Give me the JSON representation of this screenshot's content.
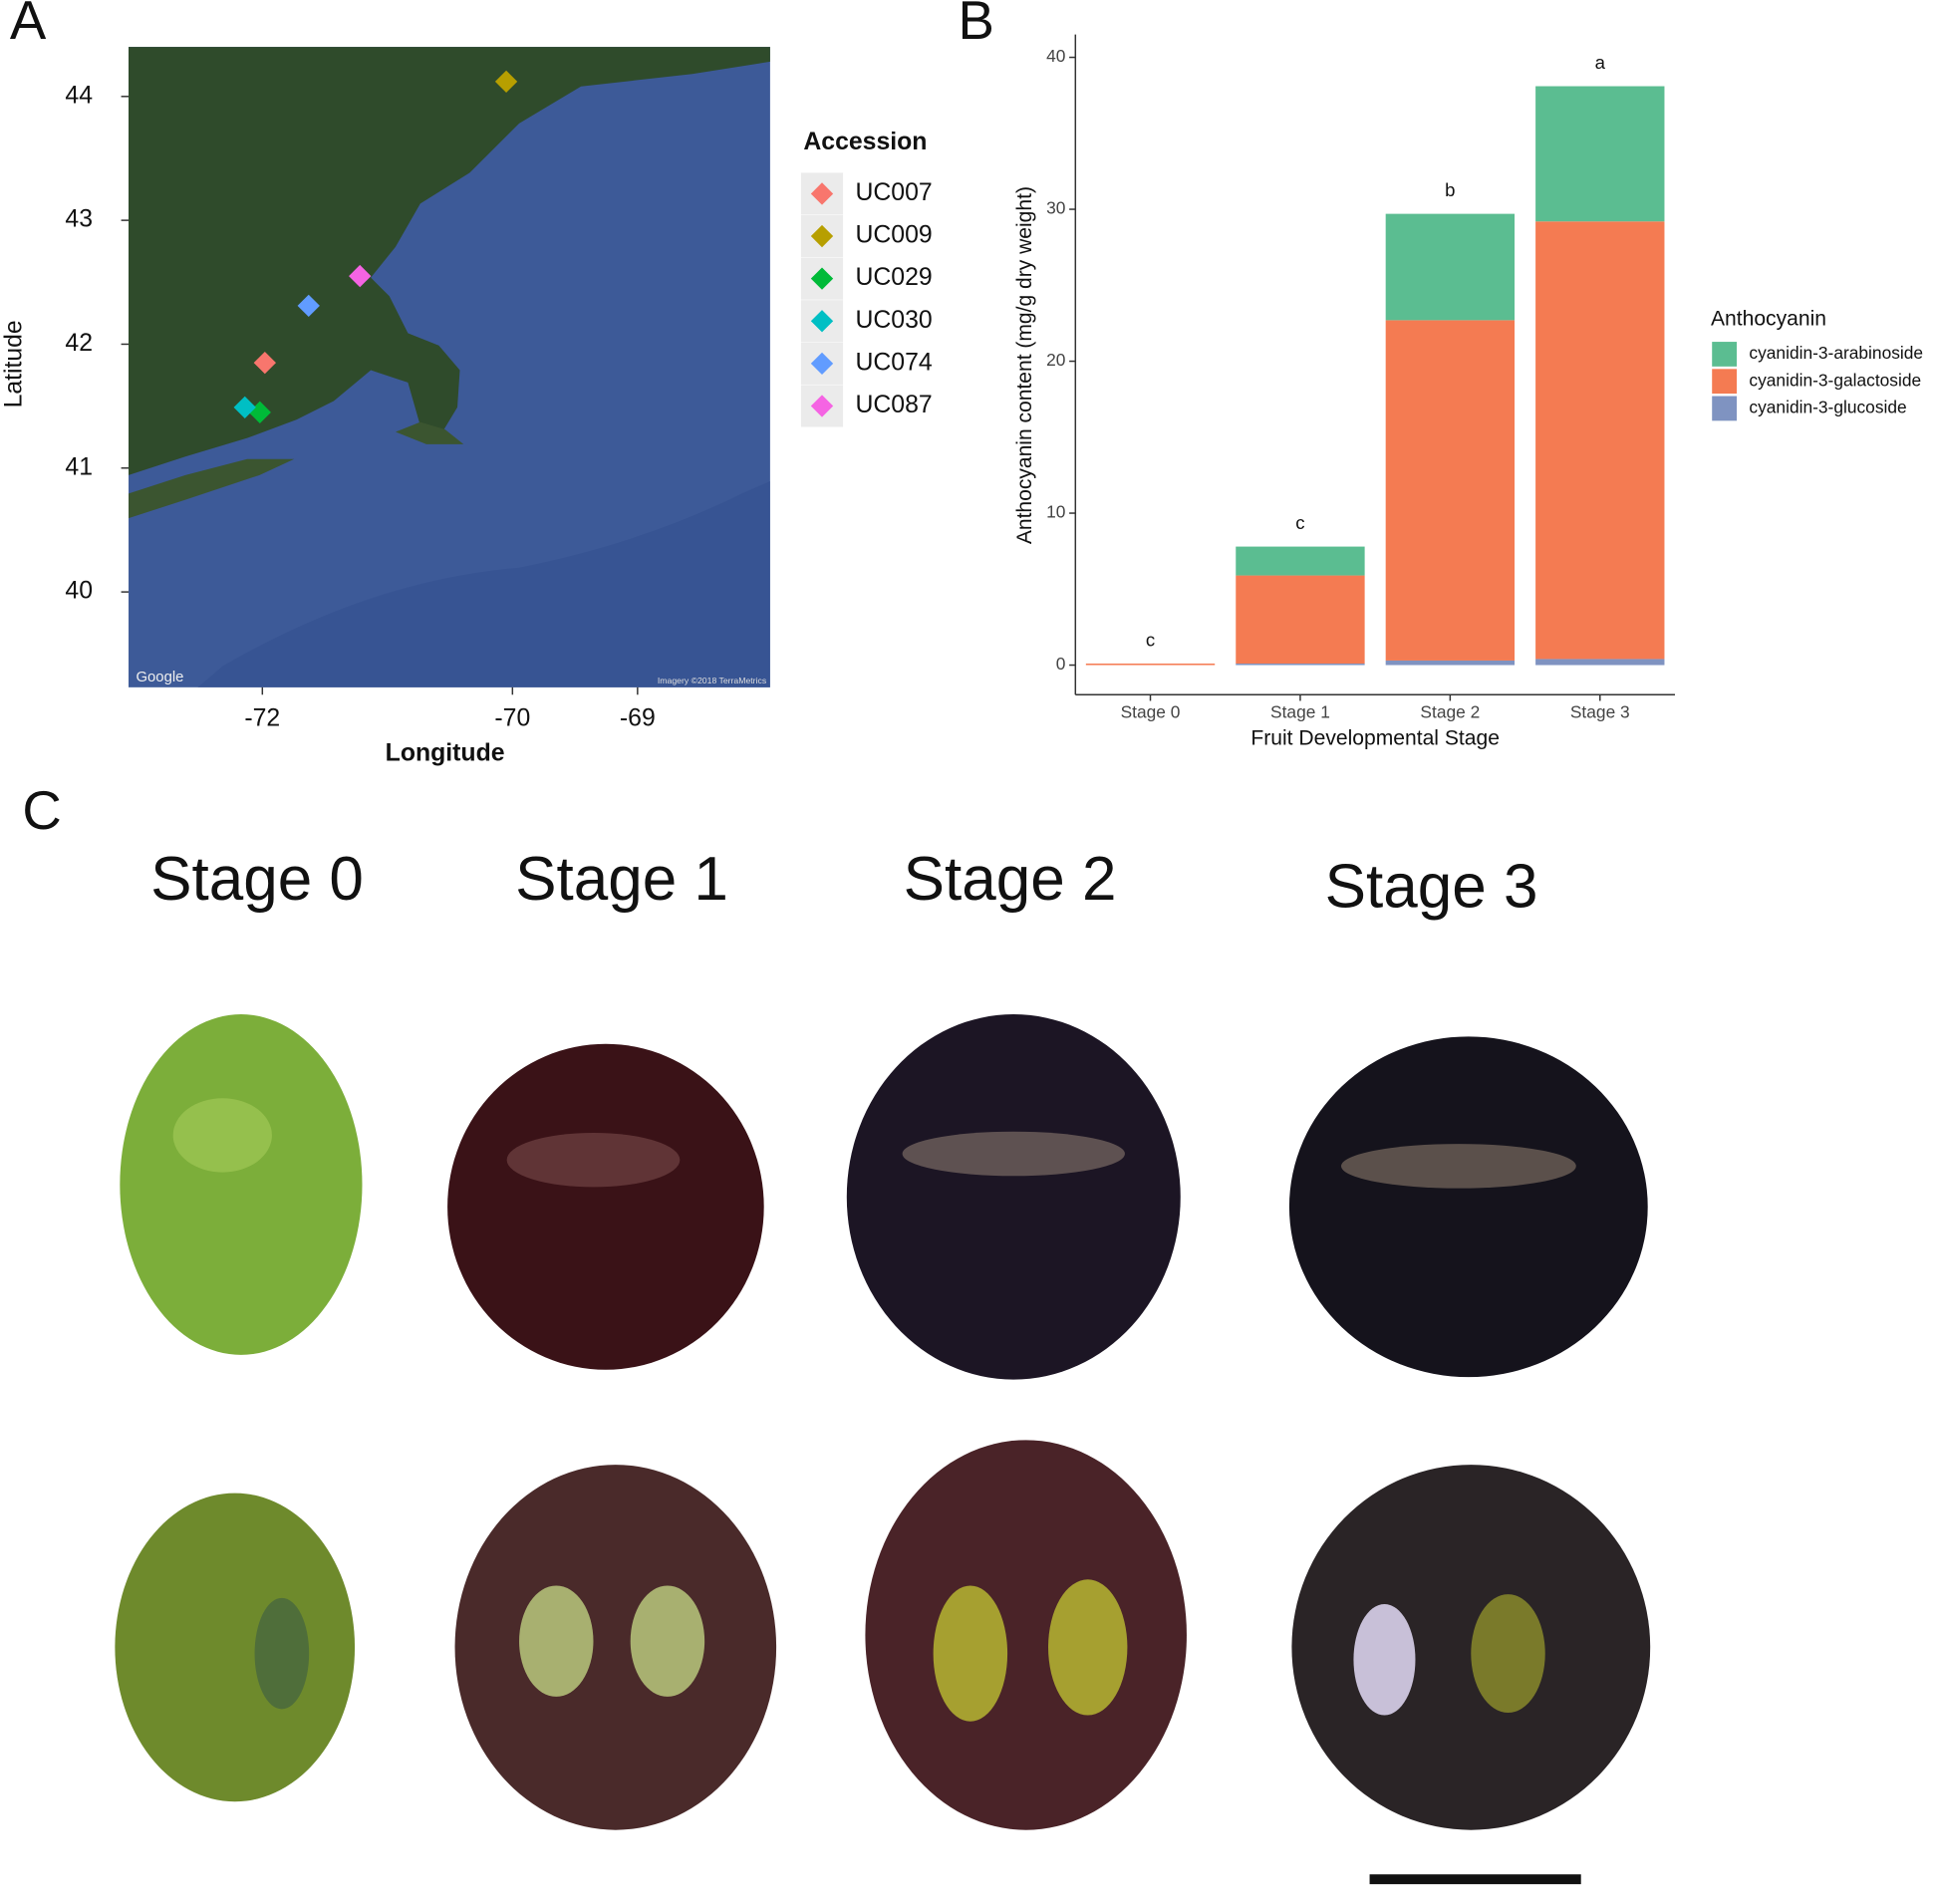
{
  "panels": [
    "A",
    "B",
    "C"
  ],
  "chart_data": [
    {
      "type": "scatter",
      "x_label": "Longitude",
      "y_label": "Latitude",
      "legend_title": "Accession",
      "attribution": [
        "Google",
        "Imagery ©2018 TerraMetrics"
      ],
      "xlim": [
        -73.07,
        -67.94
      ],
      "ylim": [
        39.23,
        44.4
      ],
      "xticks": [
        -72,
        -70,
        -69
      ],
      "yticks": [
        40,
        41,
        42,
        43,
        44
      ],
      "series": [
        {
          "name": "UC007",
          "color": "#f8766d",
          "x": [
            -71.98
          ],
          "values": [
            41.85
          ]
        },
        {
          "name": "UC009",
          "color": "#b79f00",
          "x": [
            -70.05
          ],
          "values": [
            44.12
          ]
        },
        {
          "name": "UC029",
          "color": "#00ba38",
          "x": [
            -72.02
          ],
          "values": [
            41.45
          ]
        },
        {
          "name": "UC030",
          "color": "#00bfc4",
          "x": [
            -72.14
          ],
          "values": [
            41.49
          ]
        },
        {
          "name": "UC074",
          "color": "#619cff",
          "x": [
            -71.63
          ],
          "values": [
            42.31
          ]
        },
        {
          "name": "UC087",
          "color": "#f564e3",
          "x": [
            -71.22
          ],
          "values": [
            42.55
          ]
        }
      ]
    },
    {
      "type": "bar",
      "stacked": true,
      "x_label": "Fruit Developmental Stage",
      "y_label": "Anthocyanin content (mg/g dry weight)",
      "legend_title": "Anthocyanin",
      "categories": [
        "Stage 0",
        "Stage 1",
        "Stage 2",
        "Stage 3"
      ],
      "annotations": [
        "c",
        "c",
        "b",
        "a"
      ],
      "ylim": [
        -1.95,
        41.5
      ],
      "yticks": [
        0,
        10,
        20,
        30,
        40
      ],
      "series": [
        {
          "name": "cyanidin-3-arabinoside",
          "color": "#5bbd91",
          "values": [
            0,
            1.9,
            7.0,
            8.9
          ]
        },
        {
          "name": "cyanidin-3-galactoside",
          "color": "#f47b52",
          "values": [
            0.1,
            5.8,
            22.4,
            28.8
          ]
        },
        {
          "name": "cyanidin-3-glucoside",
          "color": "#7f93c1",
          "values": [
            0,
            0.1,
            0.3,
            0.4
          ]
        }
      ]
    }
  ],
  "photos": {
    "labels": [
      "Stage 0",
      "Stage 1",
      "Stage 2",
      "Stage 3"
    ]
  }
}
